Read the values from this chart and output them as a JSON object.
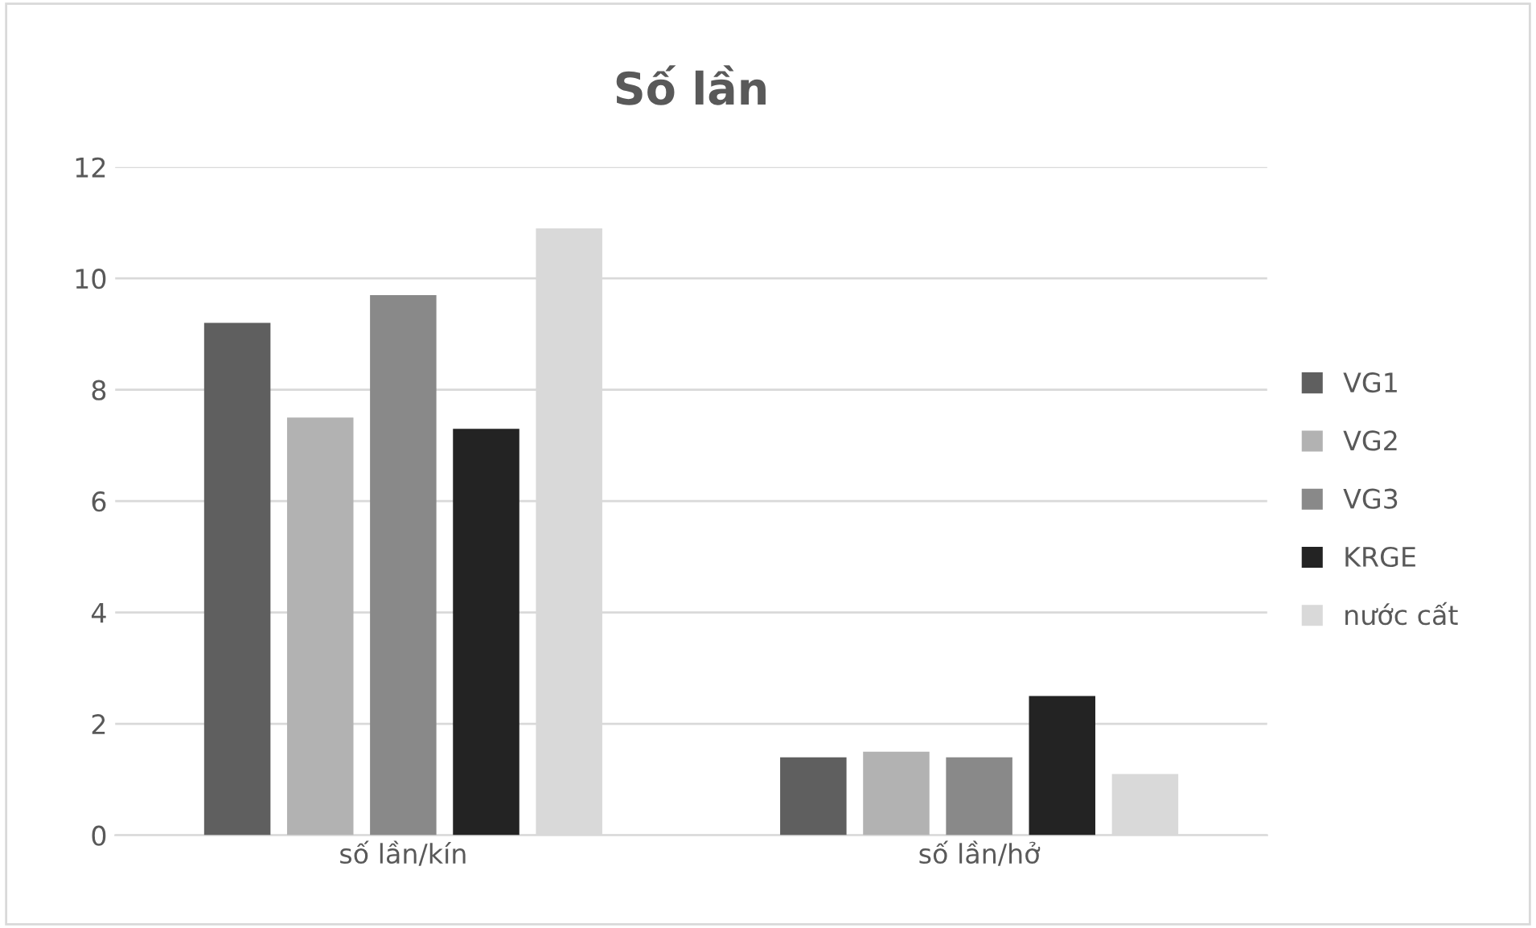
{
  "chart_data": {
    "type": "bar",
    "title": "Số lần",
    "categories": [
      "số lần/kín",
      "số lần/hở"
    ],
    "series": [
      {
        "name": "VG1",
        "color": "#5f5f5f",
        "values": [
          9.2,
          1.4
        ]
      },
      {
        "name": "VG2",
        "color": "#b2b2b2",
        "values": [
          7.5,
          1.5
        ]
      },
      {
        "name": "VG3",
        "color": "#898989",
        "values": [
          9.7,
          1.4
        ]
      },
      {
        "name": "KRGE",
        "color": "#232323",
        "values": [
          7.3,
          2.5
        ]
      },
      {
        "name": "nước cất",
        "color": "#d9d9d9",
        "values": [
          10.9,
          1.1
        ]
      }
    ],
    "ylim": [
      0,
      12
    ],
    "yticks": [
      0,
      2,
      4,
      6,
      8,
      10,
      12
    ],
    "grid": "y",
    "legend": "right"
  }
}
